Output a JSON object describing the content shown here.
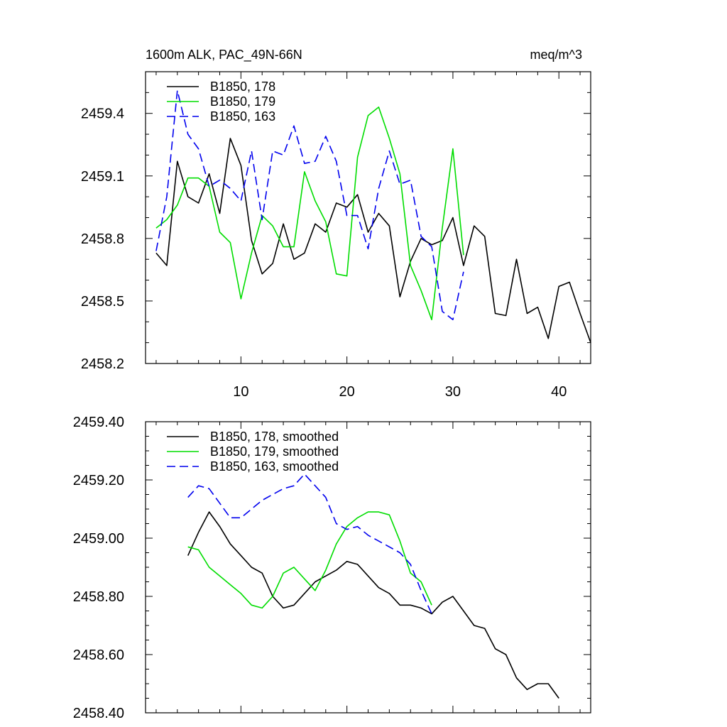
{
  "chart_data": [
    {
      "type": "line",
      "title": "1600m ALK, PAC_49N-66N",
      "units": "meq/m^3",
      "xlim": [
        1,
        43
      ],
      "ylim": [
        2458.2,
        2459.6
      ],
      "xticks": [
        10,
        20,
        30,
        40
      ],
      "xtick_labels": [
        "10",
        "20",
        "30",
        "40"
      ],
      "yticks": [
        2458.2,
        2458.5,
        2458.8,
        2459.1,
        2459.4
      ],
      "ytick_labels": [
        "2458.2",
        "2458.5",
        "2458.8",
        "2459.1",
        "2459.4"
      ],
      "legend_position": "top-left",
      "series": [
        {
          "name": "B1850, 178",
          "color": "#000000",
          "dash": "solid",
          "x": [
            2,
            3,
            4,
            5,
            6,
            7,
            8,
            9,
            10,
            11,
            12,
            13,
            14,
            15,
            16,
            17,
            18,
            19,
            20,
            21,
            22,
            23,
            24,
            25,
            26,
            27,
            28,
            29,
            30,
            31,
            32,
            33,
            34,
            35,
            36,
            37,
            38,
            39,
            40,
            41,
            42,
            43
          ],
          "values": [
            2458.73,
            2458.67,
            2459.17,
            2459.0,
            2458.97,
            2459.11,
            2458.92,
            2459.28,
            2459.15,
            2458.79,
            2458.63,
            2458.68,
            2458.87,
            2458.7,
            2458.73,
            2458.87,
            2458.83,
            2458.97,
            2458.95,
            2459.01,
            2458.83,
            2458.92,
            2458.86,
            2458.52,
            2458.69,
            2458.8,
            2458.77,
            2458.79,
            2458.9,
            2458.67,
            2458.86,
            2458.81,
            2458.44,
            2458.43,
            2458.7,
            2458.44,
            2458.47,
            2458.32,
            2458.57,
            2458.59,
            2458.44,
            2458.3
          ]
        },
        {
          "name": "B1850, 179",
          "color": "#00dd00",
          "dash": "solid",
          "x": [
            2,
            3,
            4,
            5,
            6,
            7,
            8,
            9,
            10,
            11,
            12,
            13,
            14,
            15,
            16,
            17,
            18,
            19,
            20,
            21,
            22,
            23,
            24,
            25,
            26,
            27,
            28,
            29,
            30,
            31
          ],
          "values": [
            2458.85,
            2458.89,
            2458.96,
            2459.09,
            2459.09,
            2459.05,
            2458.83,
            2458.78,
            2458.51,
            2458.73,
            2458.91,
            2458.86,
            2458.76,
            2458.76,
            2459.12,
            2458.98,
            2458.88,
            2458.63,
            2458.62,
            2459.19,
            2459.39,
            2459.43,
            2459.28,
            2459.11,
            2458.67,
            2458.55,
            2458.41,
            2458.85,
            2459.23,
            2458.72
          ]
        },
        {
          "name": "B1850, 163",
          "color": "#0000ee",
          "dash": "dashed",
          "x": [
            2,
            3,
            4,
            5,
            6,
            7,
            8,
            9,
            10,
            11,
            12,
            13,
            14,
            15,
            16,
            17,
            18,
            19,
            20,
            21,
            22,
            23,
            24,
            25,
            26,
            27,
            28,
            29,
            30,
            31
          ],
          "values": [
            2458.74,
            2459.0,
            2459.51,
            2459.3,
            2459.23,
            2459.05,
            2459.08,
            2459.04,
            2458.98,
            2459.22,
            2458.89,
            2459.22,
            2459.2,
            2459.34,
            2459.16,
            2459.17,
            2459.29,
            2459.17,
            2458.91,
            2458.91,
            2458.75,
            2459.04,
            2459.22,
            2459.06,
            2459.08,
            2458.81,
            2458.76,
            2458.45,
            2458.41,
            2458.64
          ]
        }
      ]
    },
    {
      "type": "line",
      "xlim": [
        1,
        43
      ],
      "ylim": [
        2458.4,
        2459.4
      ],
      "xticks": [
        10,
        20,
        30,
        40
      ],
      "yticks": [
        2458.4,
        2458.6,
        2458.8,
        2459.0,
        2459.2,
        2459.4
      ],
      "ytick_labels": [
        "2458.40",
        "2458.60",
        "2458.80",
        "2459.00",
        "2459.20",
        "2459.40"
      ],
      "legend_position": "top-left",
      "series": [
        {
          "name": "B1850, 178, smoothed",
          "color": "#000000",
          "dash": "solid",
          "x": [
            5,
            6,
            7,
            8,
            9,
            10,
            11,
            12,
            13,
            14,
            15,
            16,
            17,
            18,
            19,
            20,
            21,
            22,
            23,
            24,
            25,
            26,
            27,
            28,
            29,
            30,
            31,
            32,
            33,
            34,
            35,
            36,
            37,
            38,
            39,
            40
          ],
          "values": [
            2458.94,
            2459.02,
            2459.09,
            2459.04,
            2458.98,
            2458.94,
            2458.9,
            2458.88,
            2458.8,
            2458.76,
            2458.77,
            2458.81,
            2458.85,
            2458.87,
            2458.89,
            2458.92,
            2458.91,
            2458.87,
            2458.83,
            2458.81,
            2458.77,
            2458.77,
            2458.76,
            2458.74,
            2458.78,
            2458.8,
            2458.75,
            2458.7,
            2458.69,
            2458.62,
            2458.6,
            2458.52,
            2458.48,
            2458.5,
            2458.5,
            2458.45
          ]
        },
        {
          "name": "B1850, 179, smoothed",
          "color": "#00dd00",
          "dash": "solid",
          "x": [
            5,
            6,
            7,
            8,
            9,
            10,
            11,
            12,
            13,
            14,
            15,
            16,
            17,
            18,
            19,
            20,
            21,
            22,
            23,
            24,
            25,
            26,
            27,
            28
          ],
          "values": [
            2458.97,
            2458.96,
            2458.9,
            2458.87,
            2458.84,
            2458.81,
            2458.77,
            2458.76,
            2458.8,
            2458.88,
            2458.9,
            2458.86,
            2458.82,
            2458.89,
            2458.98,
            2459.04,
            2459.07,
            2459.09,
            2459.09,
            2459.08,
            2458.99,
            2458.88,
            2458.85,
            2458.77
          ]
        },
        {
          "name": "B1850, 163, smoothed",
          "color": "#0000ee",
          "dash": "dashed",
          "x": [
            5,
            6,
            7,
            8,
            9,
            10,
            11,
            12,
            13,
            14,
            15,
            16,
            17,
            18,
            19,
            20,
            21,
            22,
            23,
            24,
            25,
            26,
            27,
            28
          ],
          "values": [
            2459.14,
            2459.18,
            2459.17,
            2459.12,
            2459.07,
            2459.07,
            2459.1,
            2459.13,
            2459.15,
            2459.17,
            2459.18,
            2459.22,
            2459.18,
            2459.14,
            2459.05,
            2459.03,
            2459.04,
            2459.01,
            2458.99,
            2458.97,
            2458.95,
            2458.91,
            2458.82,
            2458.74
          ]
        }
      ]
    }
  ]
}
